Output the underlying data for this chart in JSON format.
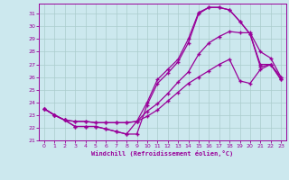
{
  "xlabel": "Windchill (Refroidissement éolien,°C)",
  "xlim_min": -0.5,
  "xlim_max": 23.5,
  "ylim_min": 21.0,
  "ylim_max": 31.8,
  "yticks": [
    21,
    22,
    23,
    24,
    25,
    26,
    27,
    28,
    29,
    30,
    31
  ],
  "xticks": [
    0,
    1,
    2,
    3,
    4,
    5,
    6,
    7,
    8,
    9,
    10,
    11,
    12,
    13,
    14,
    15,
    16,
    17,
    18,
    19,
    20,
    21,
    22,
    23
  ],
  "line_color": "#990099",
  "bg_color": "#cce8ee",
  "grid_color": "#aacccc",
  "lines": [
    {
      "x": [
        0,
        1,
        2,
        3,
        4,
        5,
        6,
        7,
        8,
        9,
        10,
        11,
        12,
        13,
        14,
        15,
        16,
        17,
        18,
        19,
        20,
        21,
        22,
        23
      ],
      "y": [
        23.5,
        23.0,
        22.6,
        22.1,
        22.1,
        22.1,
        21.9,
        21.7,
        21.5,
        21.5,
        23.8,
        25.5,
        26.3,
        27.2,
        28.7,
        31.0,
        31.5,
        31.5,
        31.3,
        30.4,
        29.4,
        26.8,
        27.0,
        25.8
      ]
    },
    {
      "x": [
        0,
        1,
        2,
        3,
        4,
        5,
        6,
        7,
        8,
        9,
        10,
        11,
        12,
        13,
        14,
        15,
        16,
        17,
        18,
        19,
        20,
        21,
        22,
        23
      ],
      "y": [
        23.5,
        23.0,
        22.6,
        22.1,
        22.1,
        22.1,
        21.9,
        21.7,
        21.5,
        22.5,
        24.0,
        25.8,
        26.6,
        27.4,
        29.0,
        31.1,
        31.5,
        31.5,
        31.3,
        30.4,
        29.4,
        27.0,
        27.0,
        25.8
      ]
    },
    {
      "x": [
        0,
        1,
        2,
        3,
        4,
        5,
        6,
        7,
        8,
        9,
        10,
        11,
        12,
        13,
        14,
        15,
        16,
        17,
        18,
        19,
        20,
        21,
        22,
        23
      ],
      "y": [
        23.5,
        23.0,
        22.6,
        22.5,
        22.5,
        22.4,
        22.4,
        22.4,
        22.4,
        22.5,
        22.9,
        23.4,
        24.1,
        24.8,
        25.5,
        26.0,
        26.5,
        27.0,
        27.4,
        25.7,
        25.5,
        26.6,
        27.0,
        26.0
      ]
    },
    {
      "x": [
        0,
        1,
        2,
        3,
        4,
        5,
        6,
        7,
        8,
        9,
        10,
        11,
        12,
        13,
        14,
        15,
        16,
        17,
        18,
        19,
        20,
        21,
        22,
        23
      ],
      "y": [
        23.5,
        23.0,
        22.6,
        22.5,
        22.5,
        22.4,
        22.4,
        22.4,
        22.4,
        22.5,
        23.3,
        23.9,
        24.7,
        25.6,
        26.4,
        27.8,
        28.7,
        29.2,
        29.6,
        29.5,
        29.5,
        28.0,
        27.5,
        26.0
      ]
    }
  ]
}
